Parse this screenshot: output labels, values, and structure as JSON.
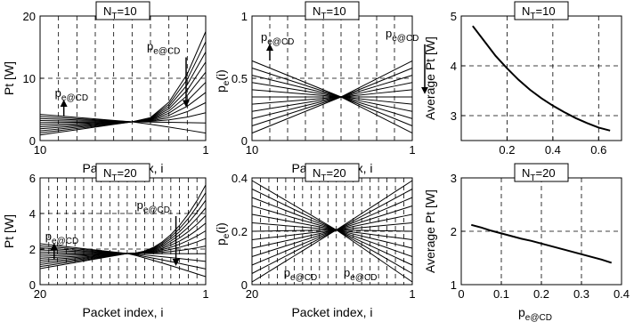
{
  "chart_data": [
    {
      "type": "line",
      "title": "N_T=10",
      "title_main": "N",
      "title_sub": "T",
      "title_rest": "=10",
      "xlabel": "Packet index, i",
      "ylabel": "Pt [W]",
      "xlim": [
        10,
        1
      ],
      "ylim": [
        0,
        20
      ],
      "x_ticks": [
        10,
        1
      ],
      "y_ticks": [
        0,
        10,
        20
      ],
      "grid": true,
      "x": [
        10,
        9,
        8,
        7,
        6,
        5,
        4,
        3,
        2,
        1
      ],
      "family": {
        "count": 11,
        "pivot_index": 5,
        "pivot_value": 3,
        "down_end": 1.2,
        "up_end": 17.5,
        "start_up": 4.2,
        "start_down": 0.9,
        "curve": "convex"
      },
      "annotations": [
        {
          "text_main": "p",
          "text_sub": "e@CD",
          "x": 9,
          "y": 7,
          "arrow": "up"
        },
        {
          "text_main": "p",
          "text_sub": "e@CD",
          "x": 4,
          "y": 14.5,
          "arrow": "down"
        }
      ]
    },
    {
      "type": "line",
      "title": "N_T=10",
      "title_main": "N",
      "title_sub": "T",
      "title_rest": "=10",
      "xlabel": "Packet index, i",
      "ylabel": "p_e(i)",
      "ylabel_main": "p",
      "ylabel_sub": "e",
      "ylabel_rest": "(i)",
      "xlim": [
        10,
        1
      ],
      "ylim": [
        0,
        1
      ],
      "x_ticks": [
        10,
        1
      ],
      "y_ticks": [
        0,
        0.5,
        1
      ],
      "grid": true,
      "x": [
        10,
        9,
        8,
        7,
        6,
        5,
        4,
        3,
        2,
        1
      ],
      "family": {
        "count": 11,
        "pivot_index": 5,
        "pivot_value": 0.35,
        "down_end": 0.06,
        "up_end": 0.64,
        "start_up": 0.64,
        "start_down": 0.06,
        "curve": "linear"
      },
      "annotations": [
        {
          "text_main": "p",
          "text_sub": "e@CD",
          "x": 9.3,
          "y": 0.8,
          "arrow": "up"
        },
        {
          "text_main": "p",
          "text_sub": "e@CD",
          "x": 2.3,
          "y": 0.83,
          "arrow": "down"
        }
      ]
    },
    {
      "type": "line",
      "title": "N_T=10",
      "title_main": "N",
      "title_sub": "T",
      "title_rest": "=10",
      "xlabel": "p_e@CD",
      "xlabel_main": "p",
      "xlabel_sub": "e@CD",
      "ylabel": "Average Pt [W]",
      "xlim": [
        0,
        0.7
      ],
      "ylim": [
        2.5,
        5
      ],
      "x_ticks": [
        0.2,
        0.4,
        0.6
      ],
      "y_ticks": [
        3,
        4,
        5
      ],
      "grid": true,
      "series": [
        {
          "x": [
            0.05,
            0.1,
            0.15,
            0.2,
            0.25,
            0.3,
            0.35,
            0.4,
            0.45,
            0.5,
            0.55,
            0.6,
            0.65
          ],
          "values": [
            4.8,
            4.5,
            4.2,
            3.95,
            3.72,
            3.52,
            3.35,
            3.2,
            3.07,
            2.95,
            2.85,
            2.76,
            2.7
          ]
        }
      ]
    },
    {
      "type": "line",
      "title": "N_T=20",
      "title_main": "N",
      "title_sub": "T",
      "title_rest": "=20",
      "xlabel": "Packet index, i",
      "ylabel": "Pt [W]",
      "xlim": [
        20,
        1
      ],
      "ylim": [
        0,
        6
      ],
      "x_ticks": [
        20,
        1
      ],
      "y_ticks": [
        0,
        2,
        4,
        6
      ],
      "grid": true,
      "x": [
        20,
        19,
        18,
        17,
        16,
        15,
        14,
        13,
        12,
        11,
        10,
        9,
        8,
        7,
        6,
        5,
        4,
        3,
        2,
        1
      ],
      "family": {
        "count": 13,
        "pivot_index": 10,
        "pivot_value": 1.75,
        "down_end": 0.45,
        "up_end": 5.6,
        "start_up": 2.3,
        "start_down": 0.9,
        "curve": "convex"
      },
      "annotations": [
        {
          "text_main": "p",
          "text_sub": "e@CD",
          "x": 19,
          "y": 2.5,
          "arrow": "up"
        },
        {
          "text_main": "p",
          "text_sub": "e@CD",
          "x": 8.5,
          "y": 4.25,
          "arrow": "down"
        }
      ]
    },
    {
      "type": "line",
      "title": "N_T=20",
      "title_main": "N",
      "title_sub": "T",
      "title_rest": "=20",
      "xlabel": "Packet index, i",
      "ylabel": "p_e(i)",
      "ylabel_main": "p",
      "ylabel_sub": "e",
      "ylabel_rest": "(i)",
      "xlim": [
        20,
        1
      ],
      "ylim": [
        0,
        0.4
      ],
      "x_ticks": [
        20,
        1
      ],
      "y_ticks": [
        0,
        0.2,
        0.4
      ],
      "grid": true,
      "x": [
        20,
        19,
        18,
        17,
        16,
        15,
        14,
        13,
        12,
        11,
        10,
        9,
        8,
        7,
        6,
        5,
        4,
        3,
        2,
        1
      ],
      "family": {
        "count": 13,
        "pivot_index": 10,
        "pivot_value": 0.205,
        "down_end": 0.01,
        "up_end": 0.39,
        "start_up": 0.39,
        "start_down": 0.01,
        "curve": "linear"
      },
      "annotations": [
        {
          "text_main": "p",
          "text_sub": "e@CD",
          "x": 15.8,
          "y": 0.03,
          "arrow": "none"
        },
        {
          "text_main": "p",
          "text_sub": "e@CD",
          "x": 8.7,
          "y": 0.03,
          "arrow": "none"
        }
      ]
    },
    {
      "type": "line",
      "title": "N_T=20",
      "title_main": "N",
      "title_sub": "T",
      "title_rest": "=20",
      "xlabel": "p_e@CD",
      "xlabel_main": "p",
      "xlabel_sub": "e@CD",
      "ylabel": "Average Pt [W]",
      "xlim": [
        0,
        0.4
      ],
      "ylim": [
        1,
        3
      ],
      "x_ticks": [
        0,
        0.1,
        0.2,
        0.3,
        0.4
      ],
      "y_ticks": [
        1,
        2,
        3
      ],
      "grid": true,
      "series": [
        {
          "x": [
            0.025,
            0.05,
            0.075,
            0.1,
            0.125,
            0.15,
            0.175,
            0.2,
            0.225,
            0.25,
            0.275,
            0.3,
            0.325,
            0.35,
            0.375
          ],
          "values": [
            2.12,
            2.07,
            2.01,
            1.96,
            1.91,
            1.86,
            1.82,
            1.77,
            1.72,
            1.67,
            1.62,
            1.57,
            1.52,
            1.47,
            1.41
          ]
        }
      ]
    }
  ]
}
